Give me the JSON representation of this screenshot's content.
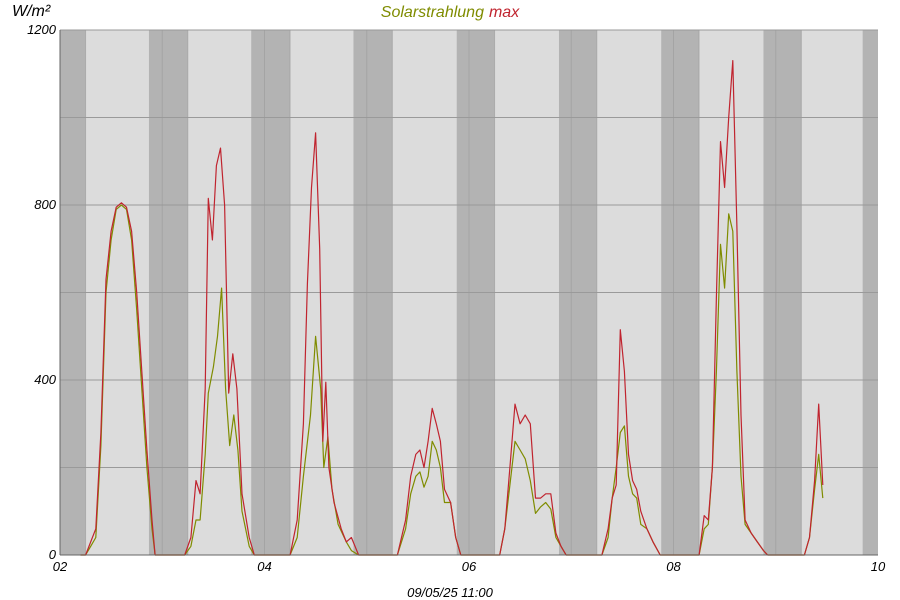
{
  "chart_data": {
    "type": "line",
    "title_parts": [
      {
        "text": "Solarstrahlung",
        "color": "#7f8c00"
      },
      {
        "text": "max",
        "color": "#c0242f"
      }
    ],
    "ylabel": "W/m²",
    "footer": "09/05/25 11:00",
    "xlim": [
      2,
      10
    ],
    "ylim": [
      0,
      1200
    ],
    "x_ticks": [
      {
        "v": 2,
        "label": "02"
      },
      {
        "v": 4,
        "label": "04"
      },
      {
        "v": 6,
        "label": "06"
      },
      {
        "v": 8,
        "label": "08"
      },
      {
        "v": 10,
        "label": "10"
      }
    ],
    "y_ticks": [
      {
        "v": 0,
        "label": "0"
      },
      {
        "v": 400,
        "label": "400"
      },
      {
        "v": 800,
        "label": "800"
      },
      {
        "v": 1200,
        "label": "1200"
      }
    ],
    "y_grid": [
      0,
      200,
      400,
      600,
      800,
      1000,
      1200
    ],
    "x_grid": [
      2,
      2.25,
      3,
      3.25,
      4,
      4.25,
      5,
      5.25,
      6,
      6.25,
      7,
      7.25,
      8,
      8.25,
      9,
      9.25
    ],
    "night_bands": [
      [
        2,
        2.25
      ],
      [
        2.87,
        3.25
      ],
      [
        3.87,
        4.25
      ],
      [
        4.87,
        5.25
      ],
      [
        5.88,
        6.25
      ],
      [
        6.88,
        7.25
      ],
      [
        7.88,
        8.25
      ],
      [
        8.88,
        9.25
      ],
      [
        9.85,
        10
      ]
    ],
    "colors": {
      "plot_bg": "#dcdcdc",
      "night_band": "#b3b3b3",
      "grid": "#9a9a9a",
      "series_mean": "#7f8c00",
      "series_max": "#c0242f"
    },
    "series": [
      {
        "name": "Solarstrahlung",
        "color": "#7f8c00",
        "points": [
          [
            2.2,
            0
          ],
          [
            2.25,
            0
          ],
          [
            2.3,
            20
          ],
          [
            2.35,
            40
          ],
          [
            2.4,
            250
          ],
          [
            2.45,
            600
          ],
          [
            2.5,
            720
          ],
          [
            2.55,
            790
          ],
          [
            2.6,
            800
          ],
          [
            2.65,
            790
          ],
          [
            2.7,
            720
          ],
          [
            2.75,
            560
          ],
          [
            2.8,
            380
          ],
          [
            2.85,
            200
          ],
          [
            2.9,
            60
          ],
          [
            2.93,
            0
          ],
          [
            3.22,
            0
          ],
          [
            3.28,
            20
          ],
          [
            3.33,
            80
          ],
          [
            3.37,
            80
          ],
          [
            3.42,
            230
          ],
          [
            3.45,
            370
          ],
          [
            3.5,
            430
          ],
          [
            3.54,
            500
          ],
          [
            3.58,
            610
          ],
          [
            3.62,
            380
          ],
          [
            3.66,
            250
          ],
          [
            3.7,
            320
          ],
          [
            3.74,
            240
          ],
          [
            3.78,
            100
          ],
          [
            3.85,
            20
          ],
          [
            3.9,
            0
          ],
          [
            4.25,
            0
          ],
          [
            4.32,
            40
          ],
          [
            4.38,
            180
          ],
          [
            4.45,
            320
          ],
          [
            4.5,
            500
          ],
          [
            4.55,
            380
          ],
          [
            4.58,
            200
          ],
          [
            4.62,
            270
          ],
          [
            4.66,
            150
          ],
          [
            4.72,
            70
          ],
          [
            4.8,
            30
          ],
          [
            4.85,
            10
          ],
          [
            4.92,
            0
          ],
          [
            5.3,
            0
          ],
          [
            5.38,
            60
          ],
          [
            5.43,
            140
          ],
          [
            5.48,
            180
          ],
          [
            5.52,
            190
          ],
          [
            5.56,
            155
          ],
          [
            5.6,
            180
          ],
          [
            5.64,
            260
          ],
          [
            5.68,
            240
          ],
          [
            5.72,
            200
          ],
          [
            5.76,
            120
          ],
          [
            5.82,
            120
          ],
          [
            5.87,
            40
          ],
          [
            5.92,
            0
          ],
          [
            6.3,
            0
          ],
          [
            6.35,
            60
          ],
          [
            6.4,
            160
          ],
          [
            6.45,
            260
          ],
          [
            6.5,
            240
          ],
          [
            6.55,
            220
          ],
          [
            6.6,
            170
          ],
          [
            6.65,
            95
          ],
          [
            6.7,
            110
          ],
          [
            6.75,
            120
          ],
          [
            6.8,
            105
          ],
          [
            6.85,
            40
          ],
          [
            6.9,
            20
          ],
          [
            6.95,
            0
          ],
          [
            7.3,
            0
          ],
          [
            7.36,
            40
          ],
          [
            7.4,
            130
          ],
          [
            7.44,
            200
          ],
          [
            7.48,
            280
          ],
          [
            7.52,
            295
          ],
          [
            7.56,
            180
          ],
          [
            7.6,
            140
          ],
          [
            7.64,
            130
          ],
          [
            7.68,
            70
          ],
          [
            7.74,
            60
          ],
          [
            7.8,
            30
          ],
          [
            7.87,
            0
          ],
          [
            8.25,
            0
          ],
          [
            8.3,
            60
          ],
          [
            8.34,
            70
          ],
          [
            8.38,
            200
          ],
          [
            8.42,
            420
          ],
          [
            8.46,
            710
          ],
          [
            8.5,
            610
          ],
          [
            8.54,
            780
          ],
          [
            8.58,
            740
          ],
          [
            8.62,
            420
          ],
          [
            8.66,
            180
          ],
          [
            8.7,
            70
          ],
          [
            8.76,
            50
          ],
          [
            8.82,
            30
          ],
          [
            8.88,
            10
          ],
          [
            8.92,
            0
          ],
          [
            9.28,
            0
          ],
          [
            9.33,
            40
          ],
          [
            9.38,
            150
          ],
          [
            9.42,
            230
          ],
          [
            9.46,
            130
          ]
        ]
      },
      {
        "name": "max",
        "color": "#c0242f",
        "points": [
          [
            2.2,
            0
          ],
          [
            2.25,
            0
          ],
          [
            2.3,
            30
          ],
          [
            2.35,
            60
          ],
          [
            2.4,
            280
          ],
          [
            2.45,
            630
          ],
          [
            2.5,
            740
          ],
          [
            2.55,
            795
          ],
          [
            2.6,
            805
          ],
          [
            2.65,
            795
          ],
          [
            2.7,
            740
          ],
          [
            2.75,
            600
          ],
          [
            2.8,
            420
          ],
          [
            2.85,
            240
          ],
          [
            2.9,
            80
          ],
          [
            2.93,
            0
          ],
          [
            3.22,
            0
          ],
          [
            3.28,
            40
          ],
          [
            3.33,
            170
          ],
          [
            3.37,
            140
          ],
          [
            3.42,
            380
          ],
          [
            3.45,
            815
          ],
          [
            3.49,
            720
          ],
          [
            3.53,
            890
          ],
          [
            3.57,
            930
          ],
          [
            3.61,
            800
          ],
          [
            3.65,
            370
          ],
          [
            3.69,
            460
          ],
          [
            3.73,
            380
          ],
          [
            3.78,
            140
          ],
          [
            3.85,
            40
          ],
          [
            3.9,
            0
          ],
          [
            4.25,
            0
          ],
          [
            4.32,
            80
          ],
          [
            4.38,
            300
          ],
          [
            4.42,
            620
          ],
          [
            4.46,
            840
          ],
          [
            4.5,
            965
          ],
          [
            4.54,
            700
          ],
          [
            4.57,
            260
          ],
          [
            4.6,
            395
          ],
          [
            4.63,
            200
          ],
          [
            4.68,
            120
          ],
          [
            4.75,
            60
          ],
          [
            4.8,
            30
          ],
          [
            4.85,
            40
          ],
          [
            4.92,
            0
          ],
          [
            5.3,
            0
          ],
          [
            5.38,
            80
          ],
          [
            5.43,
            180
          ],
          [
            5.48,
            230
          ],
          [
            5.52,
            240
          ],
          [
            5.56,
            200
          ],
          [
            5.6,
            260
          ],
          [
            5.64,
            335
          ],
          [
            5.68,
            300
          ],
          [
            5.72,
            260
          ],
          [
            5.76,
            150
          ],
          [
            5.82,
            120
          ],
          [
            5.87,
            40
          ],
          [
            5.92,
            0
          ],
          [
            6.3,
            0
          ],
          [
            6.35,
            60
          ],
          [
            6.4,
            200
          ],
          [
            6.45,
            345
          ],
          [
            6.5,
            300
          ],
          [
            6.55,
            320
          ],
          [
            6.6,
            300
          ],
          [
            6.65,
            130
          ],
          [
            6.7,
            130
          ],
          [
            6.75,
            140
          ],
          [
            6.8,
            140
          ],
          [
            6.85,
            50
          ],
          [
            6.9,
            20
          ],
          [
            6.95,
            0
          ],
          [
            7.3,
            0
          ],
          [
            7.36,
            60
          ],
          [
            7.4,
            130
          ],
          [
            7.44,
            160
          ],
          [
            7.48,
            515
          ],
          [
            7.52,
            420
          ],
          [
            7.56,
            230
          ],
          [
            7.6,
            170
          ],
          [
            7.64,
            150
          ],
          [
            7.68,
            100
          ],
          [
            7.74,
            60
          ],
          [
            7.8,
            30
          ],
          [
            7.87,
            0
          ],
          [
            8.25,
            0
          ],
          [
            8.3,
            90
          ],
          [
            8.34,
            80
          ],
          [
            8.38,
            200
          ],
          [
            8.42,
            590
          ],
          [
            8.46,
            945
          ],
          [
            8.5,
            840
          ],
          [
            8.54,
            1000
          ],
          [
            8.58,
            1130
          ],
          [
            8.62,
            750
          ],
          [
            8.66,
            320
          ],
          [
            8.7,
            80
          ],
          [
            8.76,
            50
          ],
          [
            8.82,
            30
          ],
          [
            8.88,
            10
          ],
          [
            8.92,
            0
          ],
          [
            9.28,
            0
          ],
          [
            9.33,
            40
          ],
          [
            9.38,
            170
          ],
          [
            9.42,
            345
          ],
          [
            9.46,
            160
          ]
        ]
      }
    ]
  }
}
